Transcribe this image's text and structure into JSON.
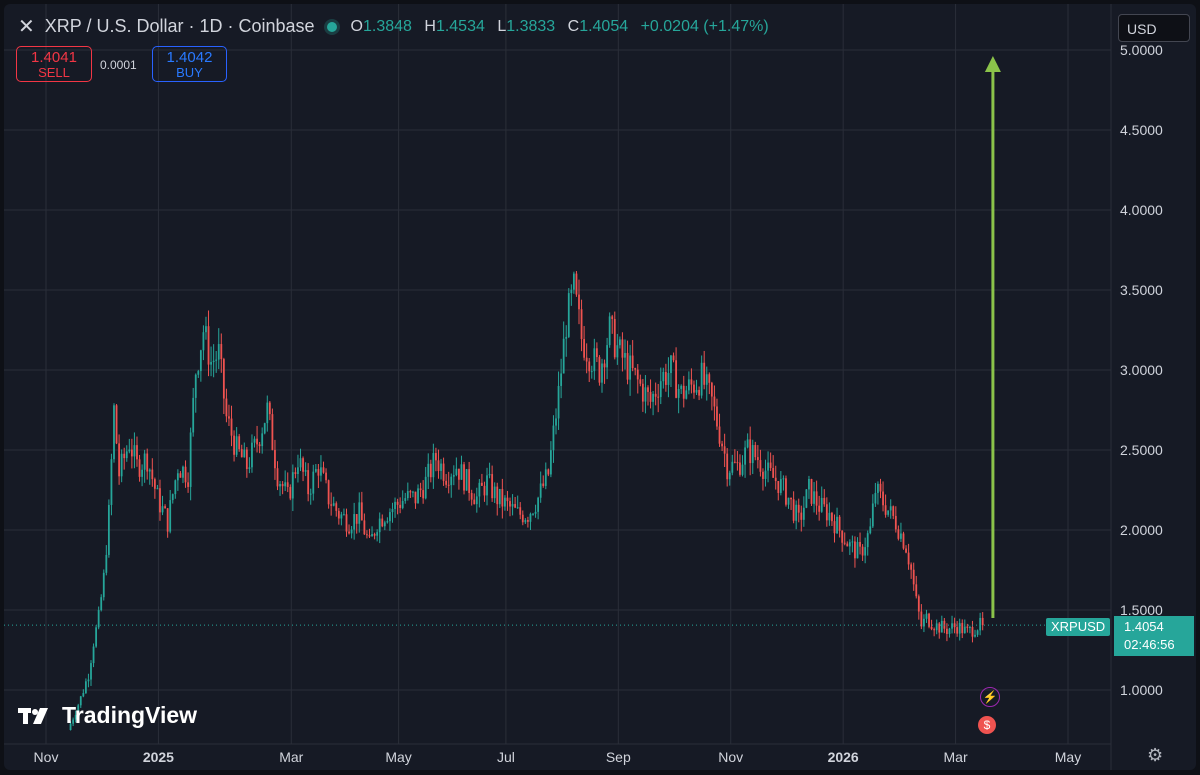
{
  "header": {
    "title": "XRP / U.S. Dollar · 1D · Coinbase",
    "o_label": "O",
    "o": "1.3848",
    "h_label": "H",
    "h": "1.4534",
    "l_label": "L",
    "l": "1.3833",
    "c_label": "C",
    "c": "1.4054",
    "change": "+0.0204 (+1.47%)"
  },
  "trade": {
    "sell_price": "1.4041",
    "sell_label": "SELL",
    "spread": "0.0001",
    "buy_price": "1.4042",
    "buy_label": "BUY"
  },
  "currency": "USD",
  "logo_text": "TradingView",
  "price_label": {
    "symbol": "XRPUSD",
    "price": "1.4054",
    "countdown": "02:46:56"
  },
  "colors": {
    "up": "#26a69a",
    "down": "#ef5350",
    "arrow": "#8bc34a",
    "background": "#161a25",
    "grid": "#2a2e39"
  },
  "icons": [
    "close-icon",
    "live-dot-icon",
    "tradingview-logo-icon",
    "ai-spark-icon",
    "us-flag-icon",
    "settings-gear-icon"
  ],
  "chart_data": {
    "type": "line",
    "style": "candlestick",
    "x_ticks": [
      "Nov",
      "2025",
      "Mar",
      "May",
      "Jul",
      "Sep",
      "Nov",
      "2026",
      "Mar",
      "May"
    ],
    "y_ticks": [
      "1.0000",
      "1.5000",
      "2.0000",
      "2.5000",
      "3.0000",
      "3.5000",
      "4.0000",
      "4.5000",
      "5.0000"
    ],
    "ylim": [
      0.7,
      5.15
    ],
    "grid": true,
    "last_price": 1.4054,
    "series": [
      {
        "values": [
          [
            0,
            0.75
          ],
          [
            5,
            0.95
          ],
          [
            8,
            1.1
          ],
          [
            10,
            1.3
          ],
          [
            12,
            1.45
          ],
          [
            14,
            1.7
          ],
          [
            16,
            2.1
          ],
          [
            18,
            2.75
          ],
          [
            20,
            2.35
          ],
          [
            24,
            2.55
          ],
          [
            27,
            2.4
          ],
          [
            31,
            2.45
          ],
          [
            35,
            2.2
          ],
          [
            39,
            2.05
          ],
          [
            43,
            2.4
          ],
          [
            47,
            2.35
          ],
          [
            50,
            3.0
          ],
          [
            53,
            3.25
          ],
          [
            56,
            3.05
          ],
          [
            59,
            3.1
          ],
          [
            62,
            2.7
          ],
          [
            66,
            2.5
          ],
          [
            70,
            2.4
          ],
          [
            74,
            2.55
          ],
          [
            78,
            2.75
          ],
          [
            82,
            2.35
          ],
          [
            86,
            2.2
          ],
          [
            90,
            2.45
          ],
          [
            94,
            2.25
          ],
          [
            98,
            2.4
          ],
          [
            102,
            2.2
          ],
          [
            106,
            2.1
          ],
          [
            110,
            2.05
          ],
          [
            114,
            2.1
          ],
          [
            118,
            1.9
          ],
          [
            121,
            2.05
          ],
          [
            124,
            2.1
          ],
          [
            128,
            2.15
          ],
          [
            132,
            2.2
          ],
          [
            136,
            2.2
          ],
          [
            140,
            2.3
          ],
          [
            144,
            2.45
          ],
          [
            148,
            2.35
          ],
          [
            152,
            2.4
          ],
          [
            156,
            2.3
          ],
          [
            160,
            2.2
          ],
          [
            164,
            2.3
          ],
          [
            168,
            2.2
          ],
          [
            172,
            2.15
          ],
          [
            176,
            2.1
          ],
          [
            180,
            2.1
          ],
          [
            184,
            2.2
          ],
          [
            188,
            2.35
          ],
          [
            192,
            2.85
          ],
          [
            195,
            3.3
          ],
          [
            198,
            3.5
          ],
          [
            201,
            3.2
          ],
          [
            204,
            3.1
          ],
          [
            208,
            3.0
          ],
          [
            212,
            3.25
          ],
          [
            216,
            3.1
          ],
          [
            220,
            3.0
          ],
          [
            224,
            2.9
          ],
          [
            228,
            2.8
          ],
          [
            232,
            2.95
          ],
          [
            236,
            3.0
          ],
          [
            240,
            2.85
          ],
          [
            244,
            2.9
          ],
          [
            248,
            2.95
          ],
          [
            252,
            2.8
          ],
          [
            256,
            2.55
          ],
          [
            258,
            2.4
          ],
          [
            262,
            2.4
          ],
          [
            266,
            2.5
          ],
          [
            270,
            2.45
          ],
          [
            274,
            2.35
          ],
          [
            278,
            2.3
          ],
          [
            282,
            2.2
          ],
          [
            286,
            2.05
          ],
          [
            290,
            2.25
          ],
          [
            294,
            2.15
          ],
          [
            298,
            2.1
          ],
          [
            302,
            2.0
          ],
          [
            306,
            1.9
          ],
          [
            310,
            1.85
          ],
          [
            314,
            2.0
          ],
          [
            316,
            2.25
          ],
          [
            320,
            2.15
          ],
          [
            324,
            2.05
          ],
          [
            328,
            1.9
          ],
          [
            330,
            1.75
          ],
          [
            332,
            1.55
          ],
          [
            334,
            1.4
          ],
          [
            336,
            1.45
          ],
          [
            340,
            1.4
          ],
          [
            344,
            1.38
          ],
          [
            348,
            1.4
          ],
          [
            352,
            1.36
          ],
          [
            356,
            1.4
          ],
          [
            358,
            1.4054
          ]
        ]
      }
    ],
    "annotation": {
      "type": "arrow",
      "from": [
        362,
        1.45
      ],
      "to": [
        362,
        4.95
      ]
    }
  }
}
